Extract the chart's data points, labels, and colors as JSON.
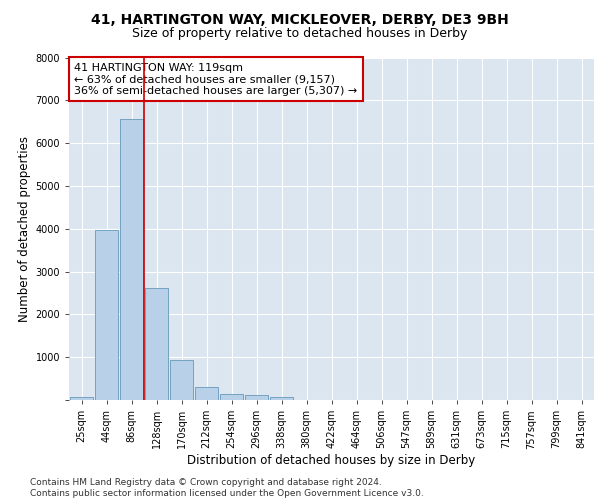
{
  "title_line1": "41, HARTINGTON WAY, MICKLEOVER, DERBY, DE3 9BH",
  "title_line2": "Size of property relative to detached houses in Derby",
  "xlabel": "Distribution of detached houses by size in Derby",
  "ylabel": "Number of detached properties",
  "bin_labels": [
    "25sqm",
    "44sqm",
    "86sqm",
    "128sqm",
    "170sqm",
    "212sqm",
    "254sqm",
    "296sqm",
    "338sqm",
    "380sqm",
    "422sqm",
    "464sqm",
    "506sqm",
    "547sqm",
    "589sqm",
    "631sqm",
    "673sqm",
    "715sqm",
    "757sqm",
    "799sqm",
    "841sqm"
  ],
  "bar_values": [
    60,
    3970,
    6560,
    2620,
    940,
    300,
    130,
    120,
    80,
    0,
    0,
    0,
    0,
    0,
    0,
    0,
    0,
    0,
    0,
    0,
    0
  ],
  "bar_color": "#b8d0e8",
  "bar_edge_color": "#6699bb",
  "vline_x_index": 2.5,
  "vline_color": "#cc0000",
  "annotation_text": "41 HARTINGTON WAY: 119sqm\n← 63% of detached houses are smaller (9,157)\n36% of semi-detached houses are larger (5,307) →",
  "annotation_box_color": "#ffffff",
  "annotation_box_edge": "#cc0000",
  "ylim": [
    0,
    8000
  ],
  "yticks": [
    0,
    1000,
    2000,
    3000,
    4000,
    5000,
    6000,
    7000,
    8000
  ],
  "background_color": "#ffffff",
  "plot_bg_color": "#dce6f0",
  "footer_text": "Contains HM Land Registry data © Crown copyright and database right 2024.\nContains public sector information licensed under the Open Government Licence v3.0.",
  "title_fontsize": 10,
  "subtitle_fontsize": 9,
  "axis_label_fontsize": 8.5,
  "tick_fontsize": 7,
  "annotation_fontsize": 8,
  "footer_fontsize": 6.5
}
